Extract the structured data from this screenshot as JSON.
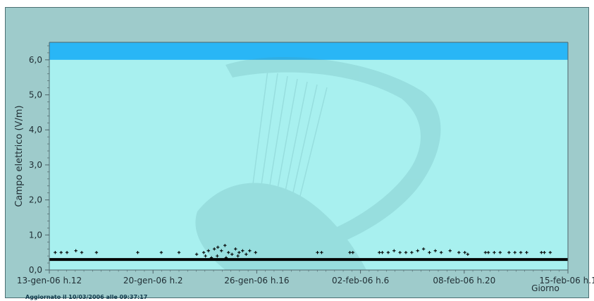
{
  "footer": {
    "updated_text": "Aggiornato il 10/03/2006 alle 09:37:17"
  },
  "chart_data": {
    "type": "scatter",
    "title": "",
    "xlabel": "Giorno",
    "ylabel": "Campo elettrico (V/m)",
    "ylim": [
      0,
      6.5
    ],
    "threshold_band": {
      "from": 6.0,
      "to": 6.5,
      "color": "#29b6f6"
    },
    "y_ticks": [
      {
        "value": 0,
        "label": "0,0"
      },
      {
        "value": 1,
        "label": "1,0"
      },
      {
        "value": 2,
        "label": "2,0"
      },
      {
        "value": 3,
        "label": "3,0"
      },
      {
        "value": 4,
        "label": "4,0"
      },
      {
        "value": 5,
        "label": "5,0"
      },
      {
        "value": 6,
        "label": "6,0"
      }
    ],
    "x_ticks": [
      "13-gen-06 h.12",
      "20-gen-06 h.2",
      "26-gen-06 h.16",
      "02-feb-06 h.6",
      "08-feb-06 h.20",
      "15-feb-06 h.1"
    ],
    "baseline_value": 0.3,
    "series": [
      {
        "name": "",
        "color": "#000000",
        "points": [
          {
            "x": 0.1,
            "y": 0.5
          },
          {
            "x": 0.2,
            "y": 0.5
          },
          {
            "x": 0.3,
            "y": 0.5
          },
          {
            "x": 0.45,
            "y": 0.55
          },
          {
            "x": 0.55,
            "y": 0.5
          },
          {
            "x": 0.8,
            "y": 0.5
          },
          {
            "x": 1.5,
            "y": 0.5
          },
          {
            "x": 1.9,
            "y": 0.5
          },
          {
            "x": 2.2,
            "y": 0.5
          },
          {
            "x": 2.5,
            "y": 0.45
          },
          {
            "x": 2.62,
            "y": 0.5
          },
          {
            "x": 2.7,
            "y": 0.55
          },
          {
            "x": 2.8,
            "y": 0.6
          },
          {
            "x": 2.86,
            "y": 0.65
          },
          {
            "x": 2.92,
            "y": 0.55
          },
          {
            "x": 2.98,
            "y": 0.7
          },
          {
            "x": 3.04,
            "y": 0.5
          },
          {
            "x": 3.1,
            "y": 0.45
          },
          {
            "x": 3.16,
            "y": 0.6
          },
          {
            "x": 3.22,
            "y": 0.5
          },
          {
            "x": 3.28,
            "y": 0.55
          },
          {
            "x": 3.34,
            "y": 0.45
          },
          {
            "x": 3.4,
            "y": 0.55
          },
          {
            "x": 3.5,
            "y": 0.5
          },
          {
            "x": 2.65,
            "y": 0.4
          },
          {
            "x": 2.75,
            "y": 0.35
          },
          {
            "x": 2.85,
            "y": 0.4
          },
          {
            "x": 3.0,
            "y": 0.35
          },
          {
            "x": 3.2,
            "y": 0.4
          },
          {
            "x": 4.55,
            "y": 0.5
          },
          {
            "x": 4.62,
            "y": 0.5
          },
          {
            "x": 5.1,
            "y": 0.5
          },
          {
            "x": 5.15,
            "y": 0.5
          },
          {
            "x": 5.6,
            "y": 0.5
          },
          {
            "x": 5.65,
            "y": 0.5
          },
          {
            "x": 5.75,
            "y": 0.5
          },
          {
            "x": 5.85,
            "y": 0.55
          },
          {
            "x": 5.95,
            "y": 0.5
          },
          {
            "x": 6.05,
            "y": 0.5
          },
          {
            "x": 6.15,
            "y": 0.5
          },
          {
            "x": 6.25,
            "y": 0.55
          },
          {
            "x": 6.35,
            "y": 0.6
          },
          {
            "x": 6.45,
            "y": 0.5
          },
          {
            "x": 6.55,
            "y": 0.55
          },
          {
            "x": 6.65,
            "y": 0.5
          },
          {
            "x": 6.8,
            "y": 0.55
          },
          {
            "x": 6.95,
            "y": 0.5
          },
          {
            "x": 7.05,
            "y": 0.5
          },
          {
            "x": 7.1,
            "y": 0.45
          },
          {
            "x": 7.4,
            "y": 0.5
          },
          {
            "x": 7.45,
            "y": 0.5
          },
          {
            "x": 7.55,
            "y": 0.5
          },
          {
            "x": 7.65,
            "y": 0.5
          },
          {
            "x": 7.8,
            "y": 0.5
          },
          {
            "x": 7.9,
            "y": 0.5
          },
          {
            "x": 8.0,
            "y": 0.5
          },
          {
            "x": 8.1,
            "y": 0.5
          },
          {
            "x": 8.35,
            "y": 0.5
          },
          {
            "x": 8.4,
            "y": 0.5
          },
          {
            "x": 8.5,
            "y": 0.5
          }
        ]
      }
    ]
  }
}
